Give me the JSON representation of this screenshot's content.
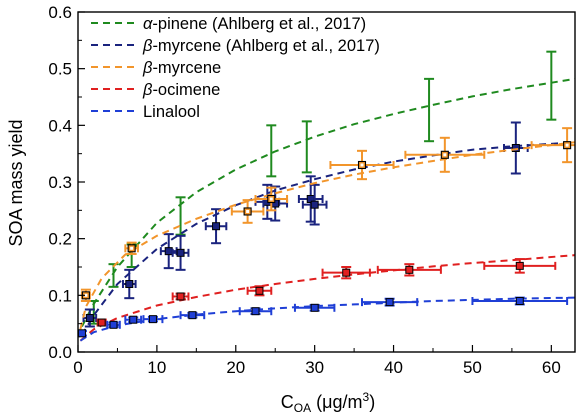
{
  "chart_data": {
    "type": "scatter",
    "xlabel": "C_OA (μg/m³)",
    "xlabel_main": "C",
    "xlabel_sub": "OA",
    "xlabel_units": " (μg/m",
    "xlabel_sup": "3",
    "xlabel_close": ")",
    "ylabel": "SOA mass yield",
    "xlim": [
      0,
      63
    ],
    "ylim": [
      0,
      0.6
    ],
    "xticks": [
      "0",
      "10",
      "20",
      "30",
      "40",
      "50",
      "60"
    ],
    "yticks": [
      "0.0",
      "0.1",
      "0.2",
      "0.3",
      "0.4",
      "0.5",
      "0.6"
    ],
    "grid": false,
    "legend_position": "top-left",
    "series": [
      {
        "name_prefix": "α",
        "name_suffix": "-pinene (Ahlberg et al., 2017)",
        "name": "α-pinene (Ahlberg et al., 2017)",
        "color": "#1f8a1f",
        "marker": "none",
        "points": [
          {
            "x": 2.0,
            "y": 0.07,
            "yerr": 0.02
          },
          {
            "x": 4.5,
            "y": 0.135,
            "yerr": 0.02
          },
          {
            "x": 6.8,
            "y": 0.17,
            "yerr": 0.02
          },
          {
            "x": 13.0,
            "y": 0.24,
            "yerr": 0.033
          },
          {
            "x": 24.5,
            "y": 0.355,
            "yerr": 0.045
          },
          {
            "x": 29.0,
            "y": 0.362,
            "yerr": 0.045
          },
          {
            "x": 44.5,
            "y": 0.427,
            "yerr": 0.055
          },
          {
            "x": 60.0,
            "y": 0.47,
            "yerr": 0.06
          }
        ],
        "fit": [
          [
            0.5,
            0.045
          ],
          [
            2,
            0.085
          ],
          [
            5,
            0.15
          ],
          [
            10,
            0.228
          ],
          [
            15,
            0.282
          ],
          [
            20,
            0.322
          ],
          [
            25,
            0.354
          ],
          [
            30,
            0.38
          ],
          [
            35,
            0.402
          ],
          [
            40,
            0.42
          ],
          [
            45,
            0.436
          ],
          [
            50,
            0.451
          ],
          [
            55,
            0.464
          ],
          [
            63,
            0.482
          ]
        ]
      },
      {
        "name_prefix": "β",
        "name_suffix": "-myrcene (Ahlberg et al., 2017)",
        "name": "β-myrcene (Ahlberg et al., 2017)",
        "color": "#1a237e",
        "marker": "square",
        "points": [
          {
            "x": 1.5,
            "y": 0.06,
            "xerr": 0.8,
            "yerr": 0.015
          },
          {
            "x": 6.5,
            "y": 0.12,
            "xerr": 0.8,
            "yerr": 0.025
          },
          {
            "x": 11.5,
            "y": 0.178,
            "xerr": 1.0,
            "yerr": 0.03
          },
          {
            "x": 13.0,
            "y": 0.175,
            "xerr": 1.0,
            "yerr": 0.03
          },
          {
            "x": 17.5,
            "y": 0.222,
            "xerr": 1.3,
            "yerr": 0.03
          },
          {
            "x": 24.0,
            "y": 0.265,
            "xerr": 1.5,
            "yerr": 0.03
          },
          {
            "x": 25.0,
            "y": 0.262,
            "xerr": 1.5,
            "yerr": 0.03
          },
          {
            "x": 29.5,
            "y": 0.27,
            "xerr": 1.5,
            "yerr": 0.04
          },
          {
            "x": 30.0,
            "y": 0.26,
            "xerr": 1.5,
            "yerr": 0.035
          },
          {
            "x": 55.5,
            "y": 0.36,
            "xerr": 1.5,
            "yerr": 0.045
          }
        ],
        "fit": [
          [
            0.5,
            0.03
          ],
          [
            2,
            0.065
          ],
          [
            5,
            0.12
          ],
          [
            10,
            0.182
          ],
          [
            15,
            0.226
          ],
          [
            20,
            0.259
          ],
          [
            25,
            0.285
          ],
          [
            30,
            0.305
          ],
          [
            35,
            0.322
          ],
          [
            40,
            0.336
          ],
          [
            45,
            0.347
          ],
          [
            50,
            0.357
          ],
          [
            55,
            0.363
          ],
          [
            63,
            0.37
          ]
        ]
      },
      {
        "name_prefix": "β",
        "name_suffix": "-myrcene",
        "name": "β-myrcene",
        "color": "#f2952b",
        "marker": "open-square",
        "points": [
          {
            "x": 1.0,
            "y": 0.1,
            "xerr": 0.5,
            "yerr": 0.01
          },
          {
            "x": 6.8,
            "y": 0.183,
            "xerr": 0.8,
            "yerr": 0.01
          },
          {
            "x": 21.5,
            "y": 0.248,
            "xerr": 2.0,
            "yerr": 0.02
          },
          {
            "x": 24.5,
            "y": 0.27,
            "xerr": 2.0,
            "yerr": 0.02
          },
          {
            "x": 36.0,
            "y": 0.33,
            "xerr": 4.0,
            "yerr": 0.025
          },
          {
            "x": 46.5,
            "y": 0.348,
            "xerr": 5.0,
            "yerr": 0.03
          },
          {
            "x": 62.0,
            "y": 0.365,
            "xerr": 4.5,
            "yerr": 0.03
          }
        ],
        "fit": [
          [
            0.3,
            0.04
          ],
          [
            1,
            0.08
          ],
          [
            3,
            0.13
          ],
          [
            6,
            0.172
          ],
          [
            10,
            0.205
          ],
          [
            15,
            0.235
          ],
          [
            20,
            0.26
          ],
          [
            25,
            0.28
          ],
          [
            30,
            0.298
          ],
          [
            35,
            0.313
          ],
          [
            40,
            0.326
          ],
          [
            45,
            0.337
          ],
          [
            50,
            0.348
          ],
          [
            55,
            0.357
          ],
          [
            63,
            0.37
          ]
        ]
      },
      {
        "name_prefix": "β",
        "name_suffix": "-ocimene",
        "name": "β-ocimene",
        "color": "#e02020",
        "marker": "square",
        "points": [
          {
            "x": 3.0,
            "y": 0.052,
            "xerr": 0.5,
            "yerr": 0.005
          },
          {
            "x": 13.0,
            "y": 0.098,
            "xerr": 1.0,
            "yerr": 0.005
          },
          {
            "x": 23.0,
            "y": 0.108,
            "xerr": 1.5,
            "yerr": 0.008
          },
          {
            "x": 34.0,
            "y": 0.14,
            "xerr": 3.0,
            "yerr": 0.01
          },
          {
            "x": 42.0,
            "y": 0.145,
            "xerr": 4.0,
            "yerr": 0.01
          },
          {
            "x": 56.0,
            "y": 0.152,
            "xerr": 4.5,
            "yerr": 0.012
          }
        ],
        "fit": [
          [
            0.3,
            0.02
          ],
          [
            2,
            0.04
          ],
          [
            5,
            0.06
          ],
          [
            10,
            0.082
          ],
          [
            15,
            0.097
          ],
          [
            20,
            0.11
          ],
          [
            25,
            0.12
          ],
          [
            30,
            0.129
          ],
          [
            35,
            0.137
          ],
          [
            40,
            0.144
          ],
          [
            45,
            0.151
          ],
          [
            50,
            0.157
          ],
          [
            55,
            0.162
          ],
          [
            63,
            0.171
          ]
        ]
      },
      {
        "name_prefix": "",
        "name_suffix": "Linalool",
        "name": "Linalool",
        "color": "#1f3fd6",
        "marker": "square",
        "points": [
          {
            "x": 0.5,
            "y": 0.033,
            "xerr": 0.4,
            "yerr": 0.004
          },
          {
            "x": 4.5,
            "y": 0.048,
            "xerr": 0.8,
            "yerr": 0.004
          },
          {
            "x": 7.0,
            "y": 0.057,
            "xerr": 1.0,
            "yerr": 0.004
          },
          {
            "x": 9.5,
            "y": 0.058,
            "xerr": 1.2,
            "yerr": 0.004
          },
          {
            "x": 14.5,
            "y": 0.065,
            "xerr": 1.5,
            "yerr": 0.004
          },
          {
            "x": 22.5,
            "y": 0.072,
            "xerr": 2.0,
            "yerr": 0.005
          },
          {
            "x": 30.0,
            "y": 0.078,
            "xerr": 2.5,
            "yerr": 0.005
          },
          {
            "x": 39.5,
            "y": 0.088,
            "xerr": 3.5,
            "yerr": 0.006
          },
          {
            "x": 56.0,
            "y": 0.09,
            "xerr": 6.0,
            "yerr": 0.006
          }
        ],
        "fit": [
          [
            0.3,
            0.02
          ],
          [
            2,
            0.035
          ],
          [
            5,
            0.047
          ],
          [
            10,
            0.058
          ],
          [
            15,
            0.066
          ],
          [
            20,
            0.072
          ],
          [
            25,
            0.077
          ],
          [
            30,
            0.081
          ],
          [
            35,
            0.084
          ],
          [
            40,
            0.087
          ],
          [
            45,
            0.09
          ],
          [
            50,
            0.092
          ],
          [
            55,
            0.094
          ],
          [
            63,
            0.096
          ]
        ]
      }
    ]
  }
}
